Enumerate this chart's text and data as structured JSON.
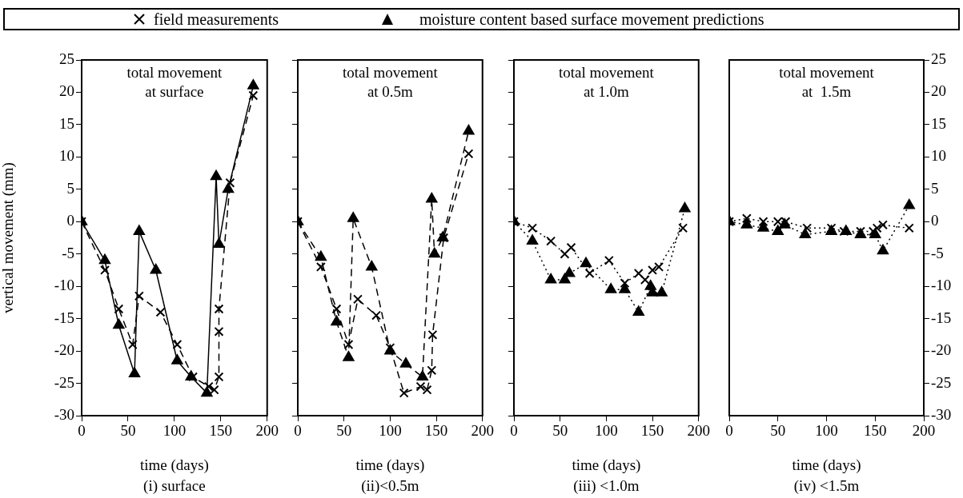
{
  "chart_data": [
    {
      "type": "line",
      "title": "total movement at surface",
      "xlabel": "time (days)",
      "ylabel": "vertical movement (mm)",
      "subtitle": "(i) surface",
      "xlim": [
        0,
        200
      ],
      "xticks": [
        0,
        50,
        100,
        150,
        200
      ],
      "ylim": [
        -30,
        25
      ],
      "yticks": [
        -30,
        -25,
        -20,
        -15,
        -10,
        -5,
        0,
        5,
        10,
        15,
        20,
        25
      ],
      "grid": false,
      "legend": "top",
      "series": [
        {
          "name": "field measurements",
          "color": "#000000",
          "marker": "cross",
          "line_style": "dashed",
          "x": [
            0,
            25,
            40,
            55,
            62,
            85,
            103,
            120,
            137,
            143,
            148,
            148,
            148,
            160,
            185
          ],
          "values": [
            0,
            -7.5,
            -13.5,
            -19,
            -11.5,
            -14,
            -19,
            -24,
            -25.5,
            -26,
            -24,
            -17,
            -13.5,
            6,
            19.5
          ]
        },
        {
          "name": "moisture content based surface movement predictions",
          "color": "#000000",
          "marker": "triangle",
          "line_style": "solid",
          "x": [
            0,
            25,
            40,
            57,
            62,
            80,
            103,
            118,
            135,
            145,
            148,
            158,
            185
          ],
          "values": [
            0,
            -6,
            -16,
            -23.5,
            -1.5,
            -7.5,
            -21.5,
            -24,
            -26.5,
            7,
            -3.5,
            5,
            21
          ]
        }
      ]
    },
    {
      "type": "line",
      "title": "total movement at 0.5m",
      "xlabel": "time (days)",
      "subtitle": "(ii)<0.5m",
      "xlim": [
        0,
        200
      ],
      "xticks": [
        0,
        50,
        100,
        150,
        200
      ],
      "ylim": [
        -30,
        25
      ],
      "yticks": [
        -30,
        -25,
        -20,
        -15,
        -10,
        -5,
        0,
        5,
        10,
        15,
        20,
        25
      ],
      "grid": false,
      "tick_labels": "x",
      "series": [
        {
          "color": "#000000",
          "marker": "cross",
          "line_style": "dashed",
          "x": [
            0,
            25,
            42,
            55,
            65,
            85,
            100,
            115,
            133,
            140,
            145,
            146,
            158,
            185
          ],
          "values": [
            0,
            -7,
            -13.5,
            -19,
            -12,
            -14.5,
            -19.5,
            -26.5,
            -25.5,
            -26,
            -23,
            -17.5,
            -2.5,
            10.5
          ]
        },
        {
          "color": "#000000",
          "marker": "triangle",
          "line_style": "dashed",
          "x": [
            0,
            25,
            42,
            55,
            60,
            80,
            100,
            117,
            135,
            145,
            148,
            157,
            185
          ],
          "values": [
            0,
            -5.5,
            -15.5,
            -21,
            0.5,
            -7,
            -20,
            -22,
            -24,
            3.5,
            -5,
            -2.5,
            14
          ]
        }
      ]
    },
    {
      "type": "line",
      "title": "total movement at 1.0m",
      "xlabel": "time (days)",
      "subtitle": "(iii) <1.0m",
      "xlim": [
        0,
        200
      ],
      "xticks": [
        0,
        50,
        100,
        150,
        200
      ],
      "ylim": [
        -30,
        25
      ],
      "yticks": [
        -30,
        -25,
        -20,
        -15,
        -10,
        -5,
        0,
        5,
        10,
        15,
        20,
        25
      ],
      "grid": false,
      "tick_labels": "x",
      "series": [
        {
          "color": "#000000",
          "marker": "cross",
          "line_style": "dotted",
          "x": [
            0,
            20,
            40,
            55,
            62,
            82,
            103,
            120,
            135,
            142,
            150,
            157,
            183
          ],
          "values": [
            0,
            -1,
            -3,
            -5,
            -4,
            -8,
            -6,
            -9.5,
            -8,
            -9,
            -7.5,
            -7,
            -1
          ]
        },
        {
          "color": "#000000",
          "marker": "triangle",
          "line_style": "dotted",
          "x": [
            0,
            20,
            40,
            55,
            60,
            78,
            105,
            120,
            135,
            148,
            150,
            160,
            185
          ],
          "values": [
            0,
            -3,
            -9,
            -9,
            -8,
            -6.5,
            -10.5,
            -10.5,
            -14,
            -10,
            -11,
            -11,
            2
          ]
        }
      ]
    },
    {
      "type": "line",
      "title": "total movement at  1.5m",
      "xlabel": "time (days)",
      "subtitle": "(iv) <1.5m",
      "xlim": [
        0,
        200
      ],
      "xticks": [
        0,
        50,
        100,
        150,
        200
      ],
      "y2lim": [
        -30,
        25
      ],
      "y2ticks": [
        -30,
        -25,
        -20,
        -15,
        -10,
        -5,
        0,
        5,
        10,
        15,
        20,
        25
      ],
      "grid": false,
      "series": [
        {
          "color": "#000000",
          "marker": "cross",
          "line_style": "dotted",
          "axis": "y2",
          "x": [
            0,
            18,
            35,
            50,
            58,
            80,
            105,
            118,
            135,
            140,
            148,
            152,
            158,
            185
          ],
          "values": [
            0,
            0.5,
            0,
            0,
            0,
            -1,
            -1,
            -1.5,
            -1.5,
            null,
            -1.5,
            -1,
            -0.5,
            -1
          ]
        },
        {
          "color": "#000000",
          "marker": "triangle",
          "line_style": "dotted",
          "axis": "y2",
          "x": [
            0,
            18,
            35,
            50,
            57,
            78,
            105,
            120,
            135,
            145,
            150,
            158,
            185
          ],
          "values": [
            0,
            -0.5,
            -1,
            -1.5,
            -0.5,
            -2,
            -1.5,
            -1.5,
            -2,
            null,
            -2,
            -4.5,
            2.5
          ]
        }
      ]
    }
  ]
}
